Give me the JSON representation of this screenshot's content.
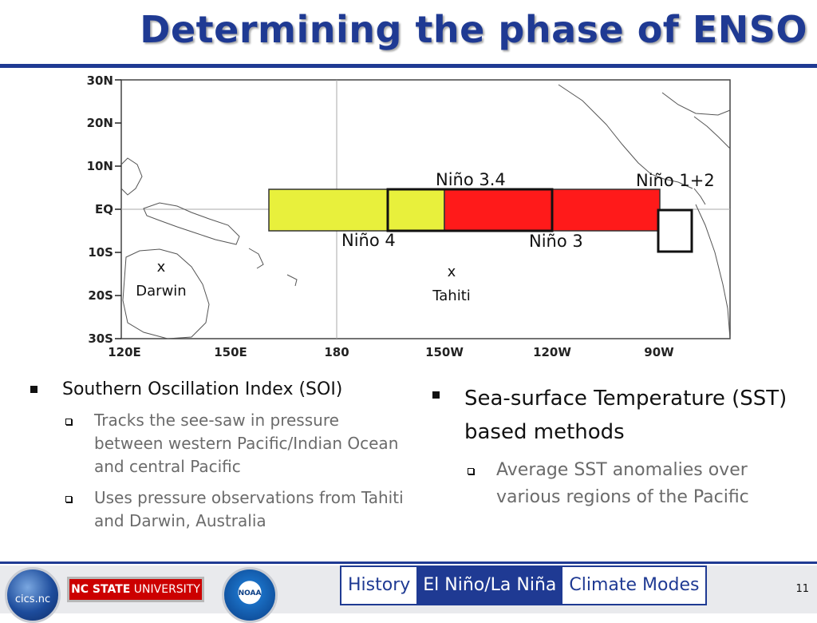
{
  "slide": {
    "title": "Determining the phase of ENSO",
    "page_number": "11"
  },
  "map": {
    "lat_labels": [
      "30N",
      "20N",
      "10N",
      "EQ",
      "10S",
      "20S",
      "30S"
    ],
    "lon_labels": [
      "120E",
      "150E",
      "180",
      "150W",
      "120W",
      "90W"
    ],
    "regions": {
      "nino4": "Niño 4",
      "nino34": "Niño 3.4",
      "nino3": "Niño 3",
      "nino12": "Niño 1+2"
    },
    "stations": {
      "darwin_marker": "x",
      "darwin": "Darwin",
      "tahiti_marker": "x",
      "tahiti": "Tahiti"
    },
    "colors": {
      "yellow": "#e8f03c",
      "red": "#ff1a1a",
      "box": "#111111"
    }
  },
  "left": {
    "heading": "Southern Oscillation Index (SOI)",
    "items": [
      "Tracks the see-saw in pressure between western Pacific/Indian Ocean and central Pacific",
      "Uses pressure observations from Tahiti and Darwin, Australia"
    ]
  },
  "right": {
    "heading": "Sea-surface Temperature (SST) based methods",
    "items": [
      "Average SST anomalies over various regions of the Pacific"
    ]
  },
  "footer": {
    "cics_logo": "cics.nc",
    "ncsu_bold": "NC STATE",
    "ncsu_rest": " UNIVERSITY",
    "noaa_logo": "NOAA",
    "tabs": [
      "History",
      "El Niño/La Niña",
      "Climate Modes"
    ],
    "active_tab": "El Niño/La Niña",
    "accent": "#1f3a93"
  }
}
